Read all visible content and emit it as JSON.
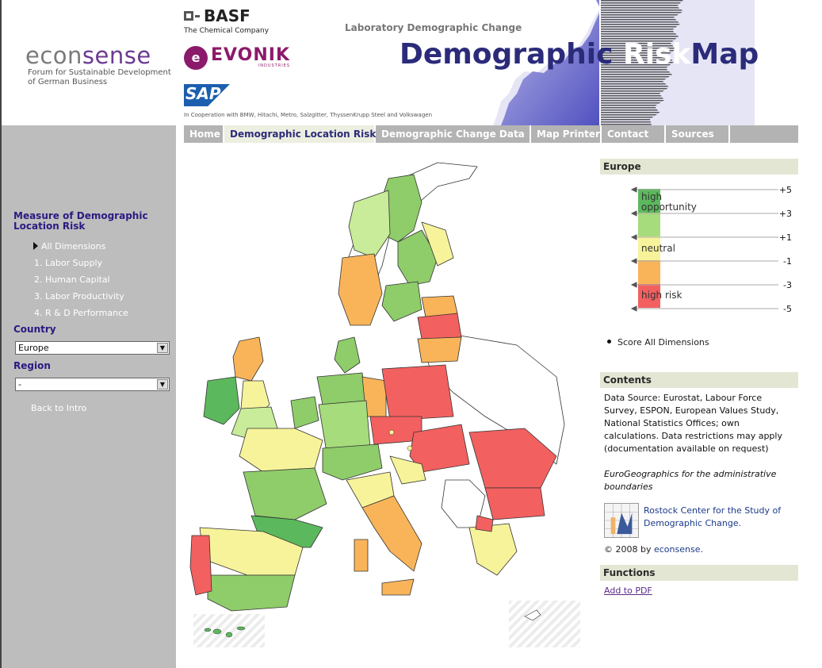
{
  "logos": {
    "econsense_eco": "econ",
    "econsense_sense": "sense",
    "econsense_tag1": "Forum for Sustainable Development",
    "econsense_tag2": "of German Business",
    "basf": "BASF",
    "basf_tag": "The Chemical Company",
    "evonik": "EVONIK",
    "evonik_sub": "INDUSTRIES",
    "sap": "SAP"
  },
  "header": {
    "cooperation": "In Cooperation with BMW, Hitachi, Metro, Salzgitter, ThyssenKrupp Steel and Volkswagen",
    "lab_title": "Laboratory Demographic Change",
    "title_part1": "Demographic",
    "title_part2": "Risk",
    "title_part3": "Map"
  },
  "nav": [
    "Home",
    "Demographic Location Risk",
    "Demographic Change Data",
    "Map Printer",
    "Contact",
    "Sources"
  ],
  "sidebar": {
    "measure_heading_line1": "Measure of Demographic",
    "measure_heading_line2": "Location Risk",
    "dimensions": [
      "All Dimensions",
      "1. Labor Supply",
      "2. Human Capital",
      "3. Labor Productivity",
      "4. R & D Performance"
    ],
    "country_label": "Country",
    "country_value": "Europe",
    "region_label": "Region",
    "region_value": "-",
    "back_link": "Back to Intro"
  },
  "legend": {
    "heading": "Europe",
    "ticks": [
      "+5",
      "+3",
      "+1",
      "-1",
      "-3",
      "-5"
    ],
    "high_opportunity_1": "high",
    "high_opportunity_2": "opportunity",
    "neutral": "neutral",
    "high_risk": "high risk",
    "score": "Score All Dimensions",
    "colors": {
      "high_opportunity": "#5cb85c",
      "opportunity": "#a6dc7c",
      "neutral": "#f7f39a",
      "risk": "#f9b45a",
      "high_risk": "#f26060"
    }
  },
  "contents": {
    "heading": "Contents",
    "source": "Data Source: Eurostat, Labour Force Survey, ESPON, European Values Study, National Statistics Offices; own calculations. Data restrictions may apply (documentation available on request)",
    "eurogeo": "EuroGeographics for the administrative boundaries",
    "rostock": "Rostock Center for the Study of Demographic Change.",
    "copyright_prefix": "© 2008 by",
    "copyright_link": "econsense."
  },
  "functions": {
    "heading": "Functions",
    "add_pdf": "Add to PDF"
  }
}
